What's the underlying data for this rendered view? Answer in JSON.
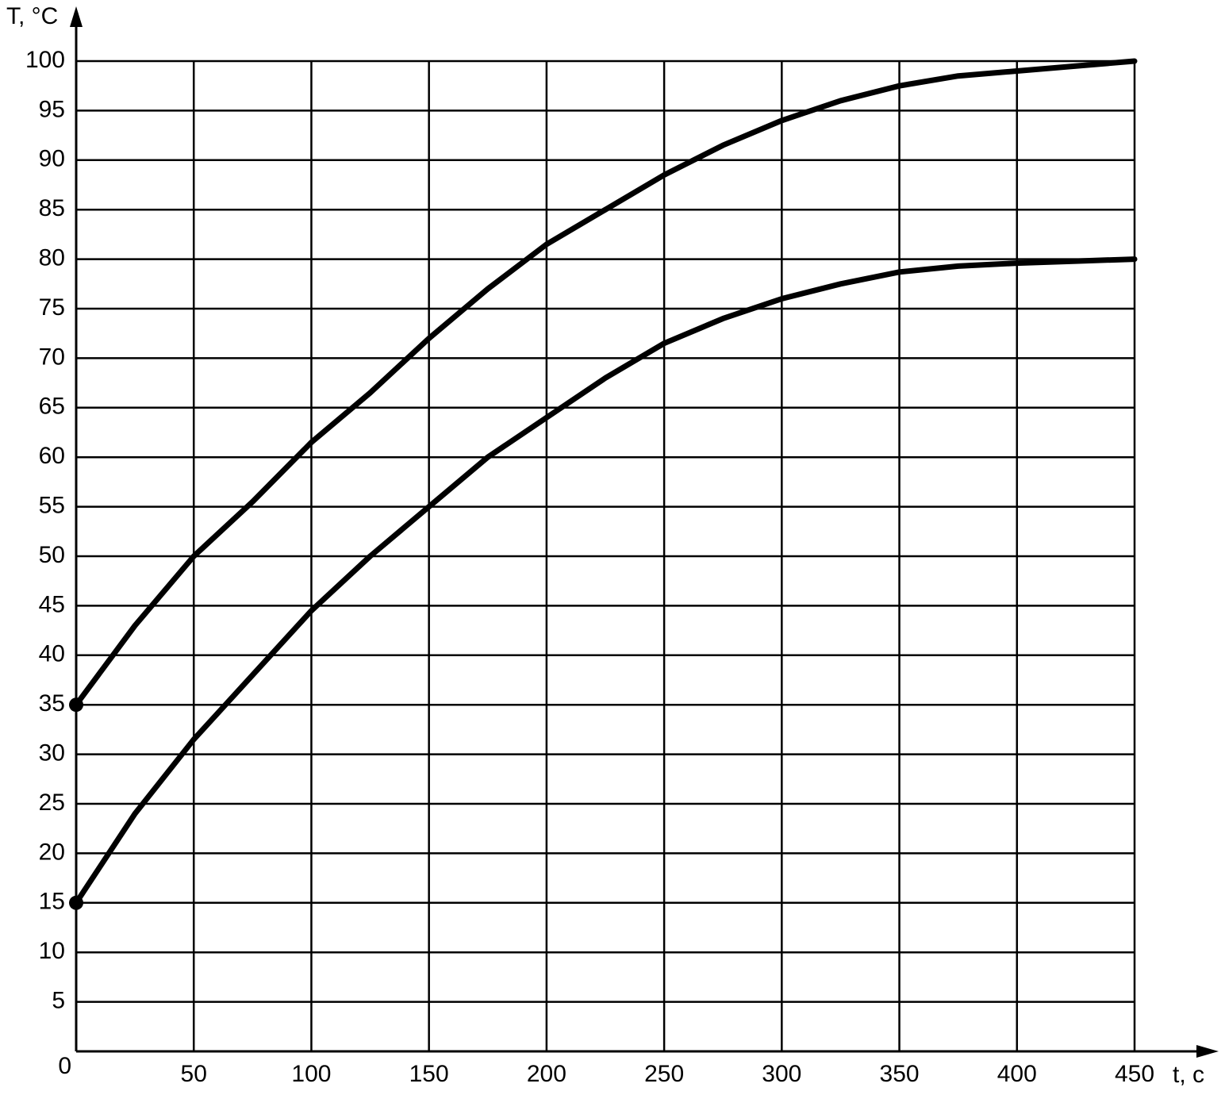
{
  "chart_data": {
    "type": "line",
    "xlabel": "t, c",
    "ylabel": "T, °C",
    "x": [
      0,
      25,
      50,
      75,
      100,
      125,
      150,
      175,
      200,
      225,
      250,
      275,
      300,
      325,
      350,
      375,
      400,
      425,
      450
    ],
    "series": [
      {
        "color": "#000000",
        "values": [
          35,
          43,
          50,
          55.5,
          61.5,
          66.5,
          72,
          77,
          81.5,
          85,
          88.5,
          91.5,
          94,
          96,
          97.5,
          98.5,
          99,
          99.5,
          100
        ]
      },
      {
        "color": "#000000",
        "values": [
          15,
          24,
          31.5,
          38,
          44.5,
          50,
          55,
          60,
          64,
          68,
          71.5,
          74,
          76,
          77.5,
          78.7,
          79.3,
          79.6,
          79.8,
          80
        ]
      }
    ],
    "start_markers": true,
    "xlim": [
      0,
      450
    ],
    "ylim": [
      0,
      100
    ],
    "xticks": [
      50,
      100,
      150,
      200,
      250,
      300,
      350,
      400,
      450
    ],
    "yticks": [
      0,
      5,
      10,
      15,
      20,
      25,
      30,
      35,
      40,
      45,
      50,
      55,
      60,
      65,
      70,
      75,
      80,
      85,
      90,
      95,
      100
    ],
    "grid": true
  }
}
